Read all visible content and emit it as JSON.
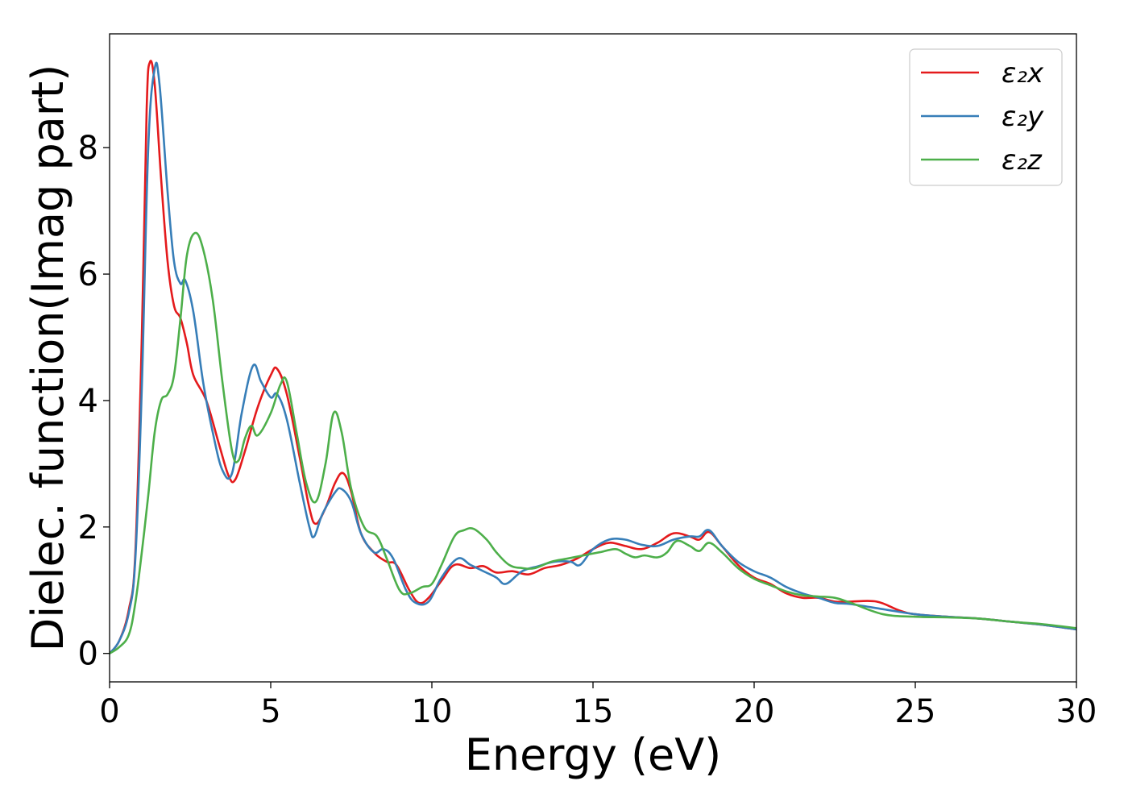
{
  "chart_data": {
    "type": "line",
    "title": "",
    "xlabel": "Energy (eV)",
    "ylabel": "Dielec. function(Imag part)",
    "xlim": [
      0,
      30
    ],
    "ylim": [
      -0.45,
      9.8
    ],
    "xticks": [
      0,
      5,
      10,
      15,
      20,
      25,
      30
    ],
    "yticks": [
      0,
      2,
      4,
      6,
      8
    ],
    "grid": false,
    "legend_position": "top-right",
    "series": [
      {
        "name": "ε₂x",
        "color": "#e41a1c",
        "points": [
          [
            0,
            0.0
          ],
          [
            0.3,
            0.2
          ],
          [
            0.6,
            0.7
          ],
          [
            0.8,
            1.6
          ],
          [
            1.0,
            5.0
          ],
          [
            1.15,
            8.6
          ],
          [
            1.25,
            9.35
          ],
          [
            1.4,
            9.0
          ],
          [
            1.6,
            7.5
          ],
          [
            1.8,
            6.2
          ],
          [
            2.0,
            5.5
          ],
          [
            2.2,
            5.3
          ],
          [
            2.4,
            4.9
          ],
          [
            2.6,
            4.4
          ],
          [
            3.0,
            4.0
          ],
          [
            3.4,
            3.3
          ],
          [
            3.7,
            2.8
          ],
          [
            3.9,
            2.75
          ],
          [
            4.2,
            3.2
          ],
          [
            4.6,
            3.9
          ],
          [
            5.0,
            4.4
          ],
          [
            5.2,
            4.5
          ],
          [
            5.5,
            4.1
          ],
          [
            5.9,
            3.1
          ],
          [
            6.2,
            2.3
          ],
          [
            6.4,
            2.05
          ],
          [
            6.7,
            2.3
          ],
          [
            7.0,
            2.7
          ],
          [
            7.25,
            2.85
          ],
          [
            7.5,
            2.55
          ],
          [
            7.8,
            1.9
          ],
          [
            8.2,
            1.6
          ],
          [
            8.6,
            1.45
          ],
          [
            8.9,
            1.4
          ],
          [
            9.3,
            1.0
          ],
          [
            9.6,
            0.8
          ],
          [
            9.9,
            0.88
          ],
          [
            10.3,
            1.15
          ],
          [
            10.7,
            1.4
          ],
          [
            11.2,
            1.35
          ],
          [
            11.6,
            1.38
          ],
          [
            12.0,
            1.28
          ],
          [
            12.5,
            1.3
          ],
          [
            13.0,
            1.25
          ],
          [
            13.5,
            1.35
          ],
          [
            14.0,
            1.4
          ],
          [
            14.5,
            1.5
          ],
          [
            15.0,
            1.65
          ],
          [
            15.5,
            1.75
          ],
          [
            16.0,
            1.7
          ],
          [
            16.5,
            1.65
          ],
          [
            17.0,
            1.75
          ],
          [
            17.5,
            1.9
          ],
          [
            18.0,
            1.85
          ],
          [
            18.3,
            1.8
          ],
          [
            18.6,
            1.92
          ],
          [
            19.0,
            1.7
          ],
          [
            19.5,
            1.4
          ],
          [
            20.0,
            1.2
          ],
          [
            20.5,
            1.1
          ],
          [
            21.0,
            0.95
          ],
          [
            21.5,
            0.88
          ],
          [
            22.0,
            0.88
          ],
          [
            22.5,
            0.82
          ],
          [
            23.0,
            0.82
          ],
          [
            23.8,
            0.82
          ],
          [
            24.5,
            0.68
          ],
          [
            25.0,
            0.62
          ],
          [
            26.0,
            0.58
          ],
          [
            27.0,
            0.55
          ],
          [
            28.0,
            0.5
          ],
          [
            29.0,
            0.45
          ],
          [
            30.0,
            0.38
          ]
        ]
      },
      {
        "name": "ε₂y",
        "color": "#377eb8",
        "points": [
          [
            0,
            0.0
          ],
          [
            0.3,
            0.2
          ],
          [
            0.6,
            0.65
          ],
          [
            0.8,
            1.5
          ],
          [
            1.0,
            4.2
          ],
          [
            1.2,
            8.0
          ],
          [
            1.4,
            9.25
          ],
          [
            1.55,
            9.0
          ],
          [
            1.8,
            7.3
          ],
          [
            2.0,
            6.2
          ],
          [
            2.2,
            5.85
          ],
          [
            2.35,
            5.9
          ],
          [
            2.6,
            5.4
          ],
          [
            2.9,
            4.3
          ],
          [
            3.2,
            3.5
          ],
          [
            3.5,
            2.9
          ],
          [
            3.8,
            2.85
          ],
          [
            4.1,
            3.8
          ],
          [
            4.45,
            4.55
          ],
          [
            4.7,
            4.3
          ],
          [
            5.0,
            4.05
          ],
          [
            5.2,
            4.1
          ],
          [
            5.5,
            3.7
          ],
          [
            5.9,
            2.7
          ],
          [
            6.2,
            2.0
          ],
          [
            6.35,
            1.85
          ],
          [
            6.6,
            2.2
          ],
          [
            7.0,
            2.55
          ],
          [
            7.2,
            2.6
          ],
          [
            7.5,
            2.4
          ],
          [
            7.8,
            1.9
          ],
          [
            8.2,
            1.6
          ],
          [
            8.5,
            1.65
          ],
          [
            8.8,
            1.5
          ],
          [
            9.2,
            1.0
          ],
          [
            9.5,
            0.8
          ],
          [
            9.9,
            0.82
          ],
          [
            10.3,
            1.2
          ],
          [
            10.8,
            1.5
          ],
          [
            11.2,
            1.4
          ],
          [
            11.6,
            1.3
          ],
          [
            12.0,
            1.2
          ],
          [
            12.3,
            1.1
          ],
          [
            12.8,
            1.3
          ],
          [
            13.3,
            1.38
          ],
          [
            13.8,
            1.45
          ],
          [
            14.3,
            1.45
          ],
          [
            14.6,
            1.4
          ],
          [
            15.0,
            1.65
          ],
          [
            15.5,
            1.8
          ],
          [
            16.0,
            1.8
          ],
          [
            16.5,
            1.72
          ],
          [
            17.0,
            1.7
          ],
          [
            17.5,
            1.8
          ],
          [
            18.0,
            1.85
          ],
          [
            18.3,
            1.85
          ],
          [
            18.6,
            1.95
          ],
          [
            19.0,
            1.7
          ],
          [
            19.5,
            1.45
          ],
          [
            20.0,
            1.3
          ],
          [
            20.5,
            1.2
          ],
          [
            21.0,
            1.05
          ],
          [
            21.5,
            0.95
          ],
          [
            22.0,
            0.88
          ],
          [
            22.5,
            0.8
          ],
          [
            23.0,
            0.78
          ],
          [
            24.0,
            0.7
          ],
          [
            25.0,
            0.62
          ],
          [
            26.0,
            0.58
          ],
          [
            27.0,
            0.55
          ],
          [
            28.0,
            0.5
          ],
          [
            29.0,
            0.45
          ],
          [
            30.0,
            0.38
          ]
        ]
      },
      {
        "name": "ε₂z",
        "color": "#4daf4a",
        "points": [
          [
            0,
            0.0
          ],
          [
            0.3,
            0.1
          ],
          [
            0.6,
            0.3
          ],
          [
            0.8,
            0.8
          ],
          [
            1.0,
            1.6
          ],
          [
            1.2,
            2.5
          ],
          [
            1.4,
            3.5
          ],
          [
            1.6,
            4.0
          ],
          [
            1.8,
            4.1
          ],
          [
            2.0,
            4.4
          ],
          [
            2.2,
            5.3
          ],
          [
            2.4,
            6.3
          ],
          [
            2.65,
            6.65
          ],
          [
            2.9,
            6.4
          ],
          [
            3.2,
            5.6
          ],
          [
            3.5,
            4.3
          ],
          [
            3.8,
            3.2
          ],
          [
            4.0,
            3.05
          ],
          [
            4.2,
            3.4
          ],
          [
            4.4,
            3.6
          ],
          [
            4.6,
            3.45
          ],
          [
            5.0,
            3.8
          ],
          [
            5.3,
            4.25
          ],
          [
            5.5,
            4.3
          ],
          [
            5.8,
            3.5
          ],
          [
            6.1,
            2.7
          ],
          [
            6.4,
            2.4
          ],
          [
            6.7,
            3.0
          ],
          [
            6.95,
            3.8
          ],
          [
            7.2,
            3.5
          ],
          [
            7.5,
            2.6
          ],
          [
            7.9,
            2.0
          ],
          [
            8.3,
            1.85
          ],
          [
            8.6,
            1.5
          ],
          [
            9.0,
            1.0
          ],
          [
            9.3,
            0.95
          ],
          [
            9.7,
            1.05
          ],
          [
            10.0,
            1.1
          ],
          [
            10.3,
            1.4
          ],
          [
            10.7,
            1.85
          ],
          [
            11.0,
            1.95
          ],
          [
            11.3,
            1.97
          ],
          [
            11.7,
            1.8
          ],
          [
            12.0,
            1.6
          ],
          [
            12.4,
            1.4
          ],
          [
            12.8,
            1.35
          ],
          [
            13.2,
            1.35
          ],
          [
            13.7,
            1.45
          ],
          [
            14.2,
            1.5
          ],
          [
            14.7,
            1.55
          ],
          [
            15.2,
            1.6
          ],
          [
            15.7,
            1.65
          ],
          [
            16.0,
            1.58
          ],
          [
            16.3,
            1.52
          ],
          [
            16.6,
            1.55
          ],
          [
            17.0,
            1.52
          ],
          [
            17.3,
            1.6
          ],
          [
            17.6,
            1.78
          ],
          [
            18.0,
            1.7
          ],
          [
            18.3,
            1.62
          ],
          [
            18.6,
            1.75
          ],
          [
            19.0,
            1.6
          ],
          [
            19.5,
            1.35
          ],
          [
            20.0,
            1.18
          ],
          [
            20.5,
            1.08
          ],
          [
            21.0,
            0.98
          ],
          [
            21.5,
            0.92
          ],
          [
            22.0,
            0.9
          ],
          [
            22.5,
            0.88
          ],
          [
            23.0,
            0.8
          ],
          [
            24.0,
            0.62
          ],
          [
            25.0,
            0.58
          ],
          [
            26.0,
            0.57
          ],
          [
            27.0,
            0.55
          ],
          [
            28.0,
            0.5
          ],
          [
            29.0,
            0.46
          ],
          [
            30.0,
            0.4
          ]
        ]
      }
    ]
  }
}
